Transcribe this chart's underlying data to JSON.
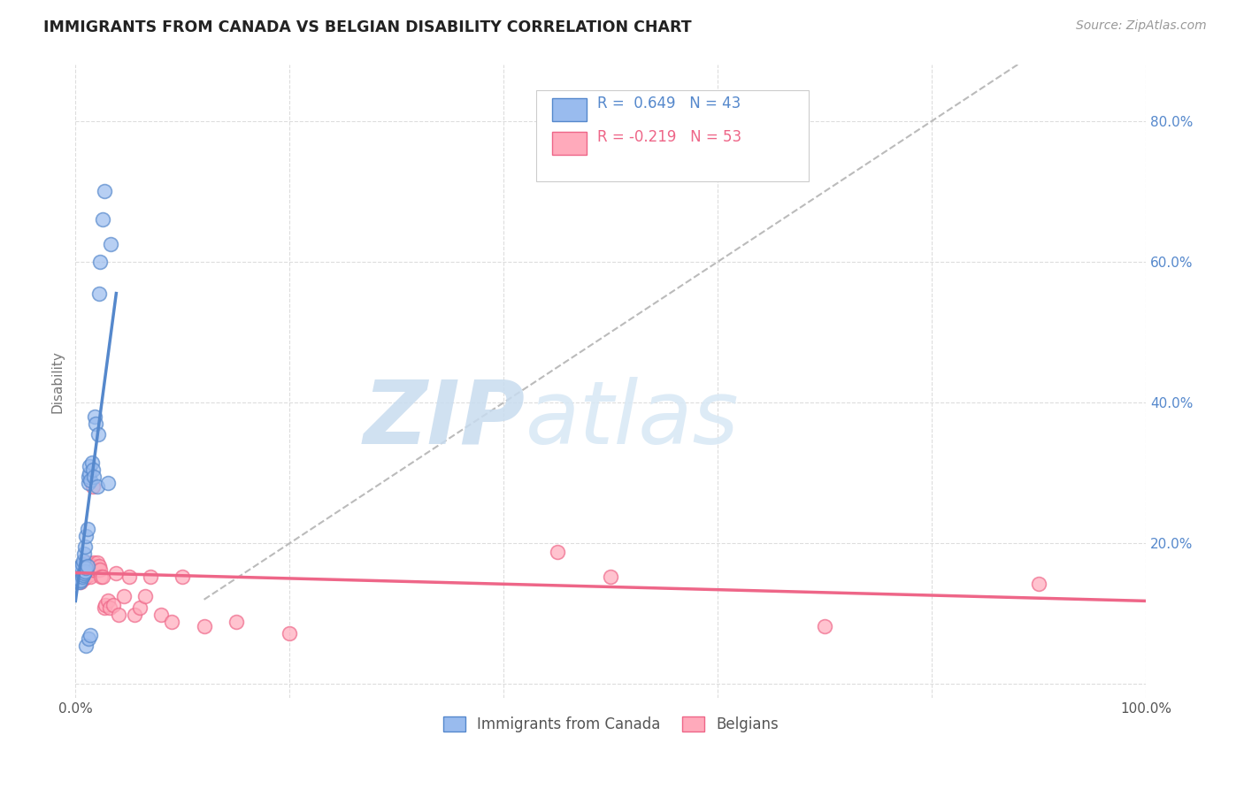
{
  "title": "IMMIGRANTS FROM CANADA VS BELGIAN DISABILITY CORRELATION CHART",
  "source": "Source: ZipAtlas.com",
  "ylabel": "Disability",
  "watermark": "ZIPatlas",
  "xlim": [
    0.0,
    1.0
  ],
  "ylim": [
    -0.02,
    0.88
  ],
  "x_ticks": [
    0.0,
    0.2,
    0.4,
    0.6,
    0.8,
    1.0
  ],
  "x_tick_labels": [
    "0.0%",
    "",
    "",
    "",
    "",
    "100.0%"
  ],
  "y_ticks": [
    0.0,
    0.2,
    0.4,
    0.6,
    0.8
  ],
  "y_tick_labels_right": [
    "",
    "20.0%",
    "40.0%",
    "60.0%",
    "80.0%"
  ],
  "blue_color": "#5588CC",
  "blue_fill": "#99BBEE",
  "pink_color": "#EE6688",
  "pink_fill": "#FFAABB",
  "blue_label": "Immigrants from Canada",
  "pink_label": "Belgians",
  "blue_R": "0.649",
  "blue_N": "43",
  "pink_R": "-0.219",
  "pink_N": "53",
  "blue_scatter_x": [
    0.001,
    0.002,
    0.002,
    0.003,
    0.003,
    0.003,
    0.004,
    0.004,
    0.005,
    0.005,
    0.006,
    0.006,
    0.007,
    0.007,
    0.008,
    0.008,
    0.009,
    0.009,
    0.01,
    0.01,
    0.011,
    0.011,
    0.012,
    0.012,
    0.013,
    0.013,
    0.014,
    0.015,
    0.016,
    0.017,
    0.018,
    0.019,
    0.02,
    0.021,
    0.022,
    0.023,
    0.025,
    0.027,
    0.03,
    0.033,
    0.01,
    0.012,
    0.014
  ],
  "blue_scatter_y": [
    0.145,
    0.148,
    0.155,
    0.15,
    0.158,
    0.165,
    0.145,
    0.162,
    0.148,
    0.168,
    0.152,
    0.17,
    0.155,
    0.175,
    0.158,
    0.185,
    0.16,
    0.195,
    0.165,
    0.21,
    0.168,
    0.22,
    0.285,
    0.295,
    0.3,
    0.31,
    0.29,
    0.315,
    0.305,
    0.295,
    0.38,
    0.37,
    0.28,
    0.355,
    0.555,
    0.6,
    0.66,
    0.7,
    0.285,
    0.625,
    0.055,
    0.065,
    0.07
  ],
  "pink_scatter_x": [
    0.001,
    0.002,
    0.003,
    0.003,
    0.004,
    0.005,
    0.005,
    0.006,
    0.007,
    0.008,
    0.008,
    0.009,
    0.01,
    0.01,
    0.011,
    0.012,
    0.013,
    0.014,
    0.015,
    0.016,
    0.016,
    0.017,
    0.018,
    0.019,
    0.02,
    0.021,
    0.022,
    0.023,
    0.024,
    0.025,
    0.027,
    0.028,
    0.03,
    0.032,
    0.035,
    0.038,
    0.04,
    0.045,
    0.05,
    0.055,
    0.06,
    0.065,
    0.07,
    0.08,
    0.09,
    0.1,
    0.12,
    0.15,
    0.2,
    0.45,
    0.5,
    0.7,
    0.9
  ],
  "pink_scatter_y": [
    0.148,
    0.152,
    0.155,
    0.162,
    0.148,
    0.145,
    0.158,
    0.152,
    0.155,
    0.162,
    0.15,
    0.158,
    0.152,
    0.165,
    0.172,
    0.162,
    0.155,
    0.152,
    0.162,
    0.28,
    0.162,
    0.172,
    0.165,
    0.168,
    0.172,
    0.162,
    0.168,
    0.162,
    0.152,
    0.152,
    0.108,
    0.112,
    0.118,
    0.108,
    0.112,
    0.158,
    0.098,
    0.125,
    0.152,
    0.098,
    0.108,
    0.125,
    0.152,
    0.098,
    0.088,
    0.152,
    0.082,
    0.088,
    0.072,
    0.188,
    0.152,
    0.082,
    0.142
  ],
  "diag_line_x": [
    0.12,
    0.88
  ],
  "diag_line_y": [
    0.12,
    0.88
  ],
  "diag_line_color": "#BBBBBB",
  "grid_color": "#DDDDDD",
  "title_color": "#222222",
  "axis_label_color": "#5588CC",
  "ylabel_color": "#777777",
  "background_color": "#FFFFFF",
  "blue_line_x": [
    0.0,
    0.038
  ],
  "blue_line_y": [
    0.118,
    0.555
  ],
  "pink_line_x": [
    0.0,
    1.0
  ],
  "pink_line_y": [
    0.158,
    0.118
  ]
}
